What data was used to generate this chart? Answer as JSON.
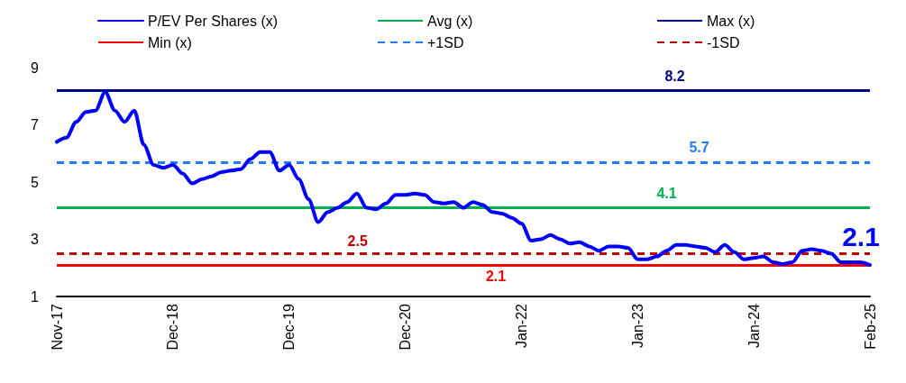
{
  "chart_data": {
    "type": "line",
    "categories": [
      "Nov-17",
      null,
      null,
      null,
      null,
      null,
      null,
      null,
      null,
      null,
      null,
      null,
      "Dec-18",
      null,
      null,
      null,
      null,
      null,
      null,
      null,
      null,
      null,
      null,
      null,
      "Dec-19",
      null,
      null,
      null,
      null,
      null,
      null,
      null,
      null,
      null,
      null,
      null,
      "Dec-20",
      null,
      null,
      null,
      null,
      null,
      null,
      null,
      null,
      null,
      null,
      null,
      "Jan-22",
      null,
      null,
      null,
      null,
      null,
      null,
      null,
      null,
      null,
      null,
      null,
      "Jan-23",
      null,
      null,
      null,
      null,
      null,
      null,
      null,
      null,
      null,
      null,
      null,
      "Jan-24",
      null,
      null,
      null,
      null,
      null,
      null,
      null,
      null,
      null,
      null,
      null,
      "Feb-25"
    ],
    "series": [
      {
        "name": "P/EV Per Shares (x)",
        "color": "#0000ff",
        "values": [
          6.4,
          6.55,
          7.1,
          7.45,
          7.5,
          8.15,
          7.5,
          7.1,
          7.5,
          6.3,
          5.6,
          5.5,
          5.6,
          5.3,
          4.95,
          5.1,
          5.2,
          5.35,
          5.4,
          5.45,
          5.8,
          6.05,
          6.05,
          5.4,
          5.6,
          5.1,
          4.4,
          3.6,
          3.95,
          4.1,
          4.3,
          4.6,
          4.1,
          4.05,
          4.25,
          4.55,
          4.55,
          4.6,
          4.55,
          4.3,
          4.25,
          4.3,
          4.1,
          4.3,
          4.2,
          3.95,
          3.9,
          3.75,
          3.55,
          2.95,
          3.0,
          3.15,
          3.0,
          2.85,
          2.9,
          2.75,
          2.6,
          2.75,
          2.75,
          2.7,
          2.3,
          2.3,
          2.4,
          2.6,
          2.8,
          2.8,
          2.75,
          2.7,
          2.55,
          2.8,
          2.55,
          2.3,
          2.35,
          2.4,
          2.2,
          2.13,
          2.2,
          2.6,
          2.65,
          2.6,
          2.5,
          2.2,
          2.2,
          2.2,
          2.1
        ]
      }
    ],
    "ref_lines": [
      {
        "axis": "y",
        "value": 4.1,
        "label": "Avg (x)",
        "color": "#00b050",
        "line_style": "solid"
      },
      {
        "axis": "y",
        "value": 8.2,
        "label": "Max (x)",
        "color": "#00008b",
        "line_style": "solid"
      },
      {
        "axis": "y",
        "value": 2.1,
        "label": "Min (x)",
        "color": "#ff0000",
        "line_style": "solid"
      },
      {
        "axis": "y",
        "value": 5.7,
        "label": "+1SD",
        "color": "#1e7bff",
        "line_style": "dashed"
      },
      {
        "axis": "y",
        "value": 2.5,
        "label": "-1SD",
        "color": "#c00000",
        "line_style": "dashed"
      }
    ],
    "annotations": [
      {
        "text": "8.2",
        "y": 8.2
      },
      {
        "text": "5.7",
        "y": 5.7
      },
      {
        "text": "4.1",
        "y": 4.1
      },
      {
        "text": "2.5",
        "y": 2.5
      },
      {
        "text": "2.1",
        "y": 2.1
      },
      {
        "text": "2.1",
        "x": "Feb-25",
        "y": 2.1
      }
    ],
    "ylim": [
      1,
      9
    ],
    "yticks": [
      1,
      3,
      5,
      7,
      9
    ],
    "grid": false,
    "legend": "top",
    "marker": "none",
    "line_style": "solid"
  }
}
